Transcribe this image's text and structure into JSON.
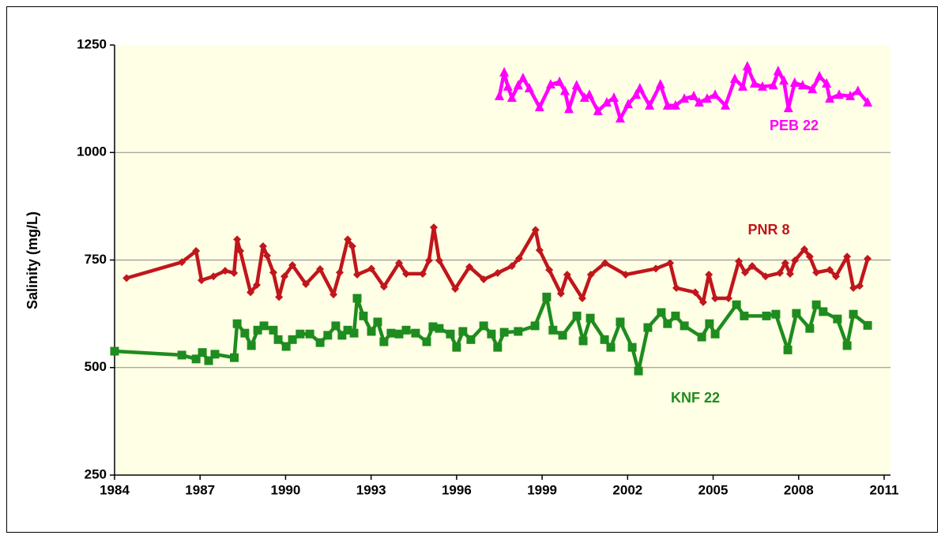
{
  "chart_data": {
    "type": "line",
    "y_label": "Salinity  (mg/L)",
    "xlim": [
      1984,
      2011
    ],
    "xticks": [
      1984,
      1987,
      1990,
      1993,
      1996,
      1999,
      2002,
      2005,
      2008,
      2011
    ],
    "ylim": [
      250,
      1250
    ],
    "yticks": [
      250,
      500,
      750,
      1000,
      1250
    ],
    "grid": true,
    "background": "#ffffe5",
    "series": [
      {
        "name": "PNR 8",
        "color": "#c0161c",
        "marker": "diamond",
        "x": [
          1984.42,
          1986.36,
          1986.86,
          1987.05,
          1987.47,
          1987.88,
          1988.19,
          1988.3,
          1988.41,
          1988.77,
          1988.99,
          1989.21,
          1989.35,
          1989.57,
          1989.77,
          1989.96,
          1990.24,
          1990.71,
          1991.21,
          1991.68,
          1991.9,
          1992.18,
          1992.34,
          1992.51,
          1993.01,
          1993.45,
          1993.98,
          1994.23,
          1994.81,
          1995.03,
          1995.2,
          1995.39,
          1995.95,
          1996.45,
          1996.95,
          1997.44,
          1997.94,
          1998.19,
          1998.77,
          1998.91,
          1999.25,
          1999.66,
          1999.88,
          2000.41,
          2000.71,
          2001.21,
          2001.93,
          2002.99,
          2003.49,
          2003.71,
          2004.37,
          2004.65,
          2004.85,
          2005.07,
          2005.54,
          2005.9,
          2006.12,
          2006.37,
          2006.84,
          2007.34,
          2007.53,
          2007.7,
          2007.87,
          2008.2,
          2008.39,
          2008.62,
          2009.09,
          2009.31,
          2009.7,
          2009.92,
          2010.14,
          2010.42
        ],
        "values": [
          708,
          745,
          771,
          703,
          712,
          725,
          720,
          798,
          771,
          675,
          692,
          782,
          760,
          721,
          664,
          712,
          738,
          694,
          729,
          670,
          721,
          798,
          782,
          716,
          730,
          688,
          743,
          718,
          718,
          749,
          826,
          749,
          683,
          734,
          705,
          720,
          736,
          754,
          820,
          773,
          727,
          672,
          716,
          661,
          716,
          743,
          716,
          730,
          743,
          685,
          675,
          652,
          716,
          661,
          661,
          747,
          721,
          736,
          712,
          720,
          743,
          718,
          749,
          775,
          758,
          721,
          727,
          712,
          758,
          685,
          690,
          753
        ]
      },
      {
        "name": "KNF 22",
        "color": "#1e8c1e",
        "marker": "square",
        "x": [
          1984.0,
          1986.36,
          1986.86,
          1987.08,
          1987.3,
          1987.52,
          1988.2,
          1988.3,
          1988.57,
          1988.8,
          1989.02,
          1989.24,
          1989.57,
          1989.74,
          1990.02,
          1990.24,
          1990.51,
          1990.85,
          1991.21,
          1991.48,
          1991.76,
          1991.98,
          1992.18,
          1992.4,
          1992.51,
          1992.73,
          1993.01,
          1993.23,
          1993.45,
          1993.7,
          1993.98,
          1994.23,
          1994.56,
          1994.95,
          1995.17,
          1995.39,
          1995.78,
          1996.0,
          1996.22,
          1996.5,
          1996.95,
          1997.22,
          1997.44,
          1997.67,
          1998.16,
          1998.75,
          1999.16,
          1999.38,
          1999.72,
          2000.22,
          2000.44,
          2000.69,
          2001.19,
          2001.41,
          2001.74,
          2002.16,
          2002.38,
          2002.71,
          2003.18,
          2003.4,
          2003.68,
          2003.99,
          2004.6,
          2004.87,
          2005.07,
          2005.82,
          2006.09,
          2006.87,
          2007.2,
          2007.62,
          2007.92,
          2008.39,
          2008.62,
          2008.86,
          2009.36,
          2009.7,
          2009.92,
          2010.42
        ],
        "values": [
          538,
          529,
          520,
          535,
          516,
          531,
          523,
          602,
          580,
          551,
          587,
          597,
          587,
          565,
          549,
          565,
          578,
          578,
          558,
          575,
          597,
          575,
          587,
          580,
          661,
          620,
          584,
          606,
          560,
          580,
          578,
          587,
          580,
          560,
          595,
          591,
          578,
          547,
          584,
          565,
          597,
          578,
          547,
          582,
          584,
          597,
          664,
          587,
          575,
          620,
          562,
          615,
          565,
          547,
          606,
          547,
          492,
          593,
          628,
          602,
          620,
          597,
          571,
          602,
          578,
          646,
          620,
          620,
          624,
          541,
          626,
          591,
          646,
          630,
          613,
          551,
          624,
          598
        ]
      },
      {
        "name": "PEB 22",
        "color": "#ff00ff",
        "marker": "triangle",
        "x": [
          1997.5,
          1997.67,
          1997.8,
          1997.94,
          1998.16,
          1998.33,
          1998.55,
          1998.91,
          1999.3,
          1999.61,
          1999.8,
          1999.94,
          2000.21,
          2000.49,
          2000.66,
          2000.96,
          2001.27,
          2001.52,
          2001.74,
          2002.02,
          2002.3,
          2002.43,
          2002.77,
          2003.15,
          2003.4,
          2003.68,
          2003.99,
          2004.32,
          2004.51,
          2004.79,
          2005.07,
          2005.43,
          2005.76,
          2006.04,
          2006.2,
          2006.45,
          2006.73,
          2007.11,
          2007.28,
          2007.48,
          2007.64,
          2007.86,
          2008.14,
          2008.48,
          2008.73,
          2008.98,
          2009.09,
          2009.42,
          2009.81,
          2010.08,
          2010.42
        ],
        "values": [
          1131,
          1186,
          1153,
          1127,
          1156,
          1173,
          1149,
          1105,
          1158,
          1164,
          1143,
          1101,
          1156,
          1127,
          1134,
          1096,
          1116,
          1127,
          1079,
          1112,
          1134,
          1149,
          1109,
          1158,
          1109,
          1109,
          1125,
          1131,
          1116,
          1125,
          1134,
          1109,
          1171,
          1153,
          1200,
          1160,
          1153,
          1156,
          1189,
          1167,
          1103,
          1162,
          1156,
          1147,
          1177,
          1160,
          1125,
          1134,
          1131,
          1143,
          1116
        ]
      }
    ]
  }
}
